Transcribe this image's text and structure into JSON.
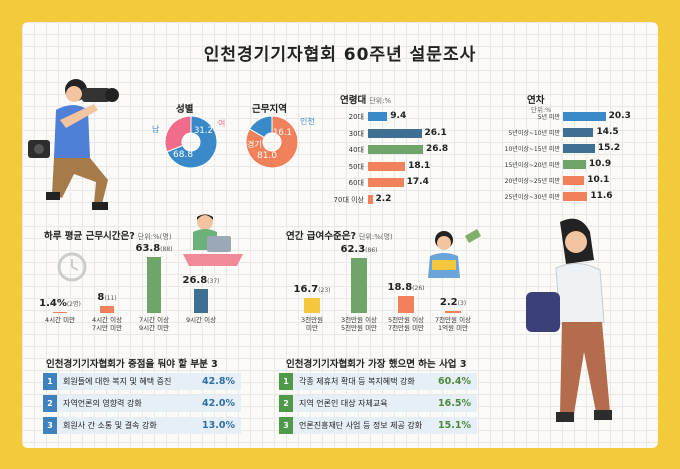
{
  "title": "인천경기기자협회 60주년 설문조사",
  "colors": {
    "blue": "#3a8ac9",
    "pink": "#f06c8a",
    "orange": "#f0815b",
    "green": "#6fa46a",
    "yellow": "#f4c73c",
    "rank_blue": "#3f82bd",
    "rank_green": "#4f9a49",
    "navy": "#3f6f93"
  },
  "chart_data": [
    {
      "type": "pie",
      "title": "성별",
      "labels": [
        "남",
        "여"
      ],
      "values": [
        68.8,
        31.2
      ],
      "value_labels": [
        "68.8",
        "31.2"
      ]
    },
    {
      "type": "pie",
      "title": "근무지역",
      "labels": [
        "경기",
        "인천"
      ],
      "values": [
        81.0,
        16.1
      ],
      "value_labels": [
        "81.0",
        "16.1"
      ]
    },
    {
      "type": "bar",
      "title": "연령대",
      "unit": "단위:%",
      "categories": [
        "20대",
        "30대",
        "40대",
        "50대",
        "60대",
        "70대 이상"
      ],
      "values": [
        9.4,
        26.1,
        26.8,
        18.1,
        17.4,
        2.2
      ],
      "value_labels": [
        "9.4",
        "26.1",
        "26.8",
        "18.1",
        "17.4",
        "2.2"
      ]
    },
    {
      "type": "bar",
      "title": "연차",
      "unit": "단위:%",
      "categories": [
        "5년 미만",
        "5년이상~10년 미만",
        "10년이상~15년 미만",
        "15년이상~20년 미만",
        "20년이상~25년 미만",
        "25년이상~30년 미만"
      ],
      "values": [
        20.3,
        14.5,
        15.2,
        10.9,
        10.1,
        11.6
      ],
      "value_labels": [
        "20.3",
        "14.5",
        "15.2",
        "10.9",
        "10.1",
        "11.6"
      ]
    },
    {
      "type": "bar",
      "title": "하루 평균 근무시간은?",
      "unit": "단위:%(명)",
      "categories": [
        "4시간 미만",
        "4시간 이상\n7시만 미만",
        "7시간 이상\n9시간 미만",
        "9시간 이상"
      ],
      "values": [
        1.4,
        8,
        63.8,
        26.8
      ],
      "value_labels": [
        "1.4%",
        "8",
        "63.8",
        "26.8"
      ],
      "counts": [
        "(2명)",
        "(11)",
        "(88)",
        "(37)"
      ]
    },
    {
      "type": "bar",
      "title": "연간 급여수준은?",
      "unit": "단위:%(명)",
      "categories": [
        "3천만원\n미만",
        "3천만원 이상\n5천만원 미만",
        "5천만원 이상\n7천만원 미만",
        "7천만원 이상\n1억원 미만"
      ],
      "values": [
        16.7,
        62.3,
        18.8,
        2.2
      ],
      "value_labels": [
        "16.7",
        "62.3",
        "18.8",
        "2.2"
      ],
      "counts": [
        "(23)",
        "(86)",
        "(26)",
        "(3)"
      ]
    }
  ],
  "focus": {
    "title": "인천경기기자협회가 중점을 둬야 할 부분 3",
    "items": [
      {
        "num": "1",
        "text": "회원들에 대한 복지 및 혜택 증진",
        "pct": "42.8%"
      },
      {
        "num": "2",
        "text": "자역언론의 영향력 강화",
        "pct": "42.0%"
      },
      {
        "num": "3",
        "text": "회원사 간 소통 및 결속 강화",
        "pct": "13.0%"
      }
    ]
  },
  "projects": {
    "title": "인천경기기자협회가 가장 했으면 하는 사업 3",
    "items": [
      {
        "num": "1",
        "text": "각종 제휴처 확대 등 복지혜택 강화",
        "pct": "60.4%"
      },
      {
        "num": "2",
        "text": "지역 언론인 대상 자체교육",
        "pct": "16.5%"
      },
      {
        "num": "3",
        "text": "언론진흥재단 사업 등 정보 제공 강화",
        "pct": "15.1%"
      }
    ]
  }
}
